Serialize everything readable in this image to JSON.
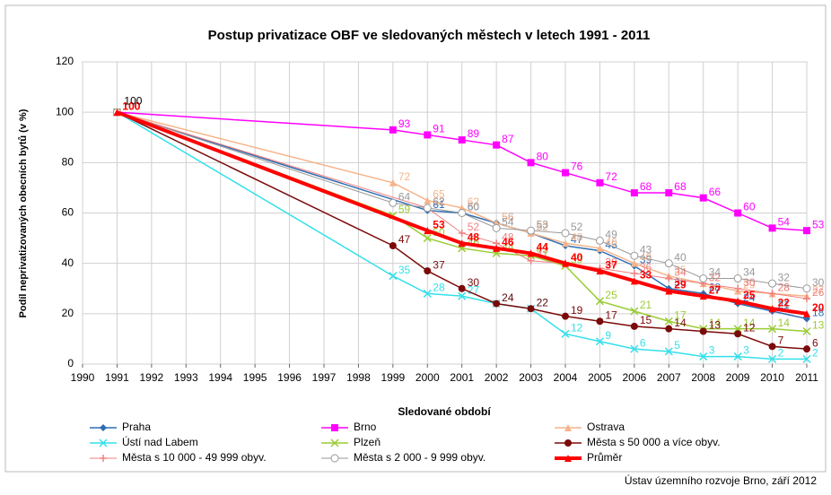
{
  "chart_data": {
    "type": "line",
    "title": "Postup privatizace OBF ve sledovaných městech v letech 1991 - 2011",
    "x_label": "Sledované období",
    "y_label": "Podíl neprivatizovaných obecních bytů (v %)",
    "source": "Ústav územního rozvoje Brno, září 2012",
    "xlim": [
      1990,
      2011
    ],
    "xticks": [
      1990,
      1991,
      1992,
      1993,
      1994,
      1995,
      1996,
      1997,
      1998,
      1999,
      2000,
      2001,
      2002,
      2003,
      2004,
      2005,
      2006,
      2007,
      2008,
      2009,
      2010,
      2011
    ],
    "ylim": [
      0,
      120
    ],
    "yticks": [
      0,
      20,
      40,
      60,
      80,
      100,
      120
    ],
    "grid": true,
    "legend": "bottom",
    "series": [
      {
        "name": "Praha",
        "color": "#2e6db4",
        "marker": "diamond",
        "width": 1.5,
        "x": [
          1991,
          2000,
          2001,
          2002,
          2003,
          2004,
          2005,
          2006,
          2007,
          2008,
          2009,
          2010,
          2011
        ],
        "values": [
          100,
          61,
          60,
          56,
          52,
          47,
          45,
          39,
          30,
          28,
          24,
          21,
          18
        ]
      },
      {
        "name": "Brno",
        "color": "#ff00ff",
        "marker": "square",
        "width": 1.5,
        "x": [
          1991,
          1999,
          2000,
          2001,
          2002,
          2003,
          2004,
          2005,
          2006,
          2007,
          2008,
          2009,
          2010,
          2011
        ],
        "values": [
          100,
          93,
          91,
          89,
          87,
          80,
          76,
          72,
          68,
          68,
          66,
          60,
          54,
          53
        ]
      },
      {
        "name": "Ostrava",
        "color": "#f5b48a",
        "marker": "triangle",
        "width": 1.5,
        "x": [
          1991,
          1999,
          2000,
          2001,
          2002,
          2003,
          2004,
          2005,
          2006,
          2007,
          2008,
          2009,
          2010,
          2011
        ],
        "values": [
          100,
          72,
          65,
          62,
          56,
          52,
          48,
          46,
          40,
          35,
          32,
          29,
          28,
          27
        ]
      },
      {
        "name": "Ústí nad Labem",
        "color": "#33e0ea",
        "marker": "x",
        "width": 1.5,
        "x": [
          1991,
          1999,
          2000,
          2001,
          2002,
          2003,
          2004,
          2005,
          2006,
          2007,
          2008,
          2009,
          2010,
          2011
        ],
        "values": [
          100,
          35,
          28,
          27,
          24,
          22,
          12,
          9,
          6,
          5,
          3,
          3,
          2,
          2
        ]
      },
      {
        "name": "Plzeň",
        "color": "#99cc33",
        "marker": "x",
        "width": 1.5,
        "x": [
          1991,
          1999,
          2000,
          2001,
          2002,
          2003,
          2004,
          2005,
          2006,
          2007,
          2008,
          2009,
          2010,
          2011
        ],
        "values": [
          100,
          59,
          50,
          46,
          44,
          43,
          39,
          25,
          21,
          17,
          14,
          14,
          14,
          13
        ]
      },
      {
        "name": "Města s 50 000 a více obyv.",
        "color": "#7b0a0a",
        "marker": "circle",
        "width": 1.5,
        "x": [
          1991,
          1999,
          2000,
          2001,
          2002,
          2003,
          2004,
          2005,
          2006,
          2007,
          2008,
          2009,
          2010,
          2011
        ],
        "values": [
          100,
          47,
          37,
          30,
          24,
          22,
          19,
          17,
          15,
          14,
          13,
          12,
          7,
          6
        ]
      },
      {
        "name": "Města s 10 000 - 49 999 obyv.",
        "color": "#f08080",
        "marker": "plus",
        "width": 1,
        "x": [
          1991,
          2000,
          2001,
          2002,
          2003,
          2004,
          2005,
          2006,
          2007,
          2008,
          2009,
          2010,
          2011
        ],
        "values": [
          100,
          62,
          52,
          48,
          41,
          40,
          38,
          36,
          34,
          32,
          30,
          28,
          26
        ]
      },
      {
        "name": "Města s 2 000 - 9 999 obyv.",
        "color": "#999999",
        "marker": "ocircle",
        "width": 1,
        "x": [
          1991,
          1999,
          2000,
          2001,
          2002,
          2003,
          2004,
          2005,
          2006,
          2007,
          2008,
          2009,
          2010,
          2011
        ],
        "values": [
          100,
          64,
          62,
          60,
          54,
          53,
          52,
          49,
          43,
          40,
          34,
          34,
          32,
          30
        ]
      },
      {
        "name": "Průměr",
        "color": "#ff0000",
        "marker": "triangle",
        "width": 4,
        "x": [
          1991,
          2000,
          2001,
          2002,
          2003,
          2004,
          2005,
          2006,
          2007,
          2008,
          2009,
          2010,
          2011
        ],
        "values": [
          100,
          53,
          48,
          46,
          44,
          40,
          37,
          33,
          29,
          27,
          25,
          22,
          20
        ]
      }
    ]
  }
}
